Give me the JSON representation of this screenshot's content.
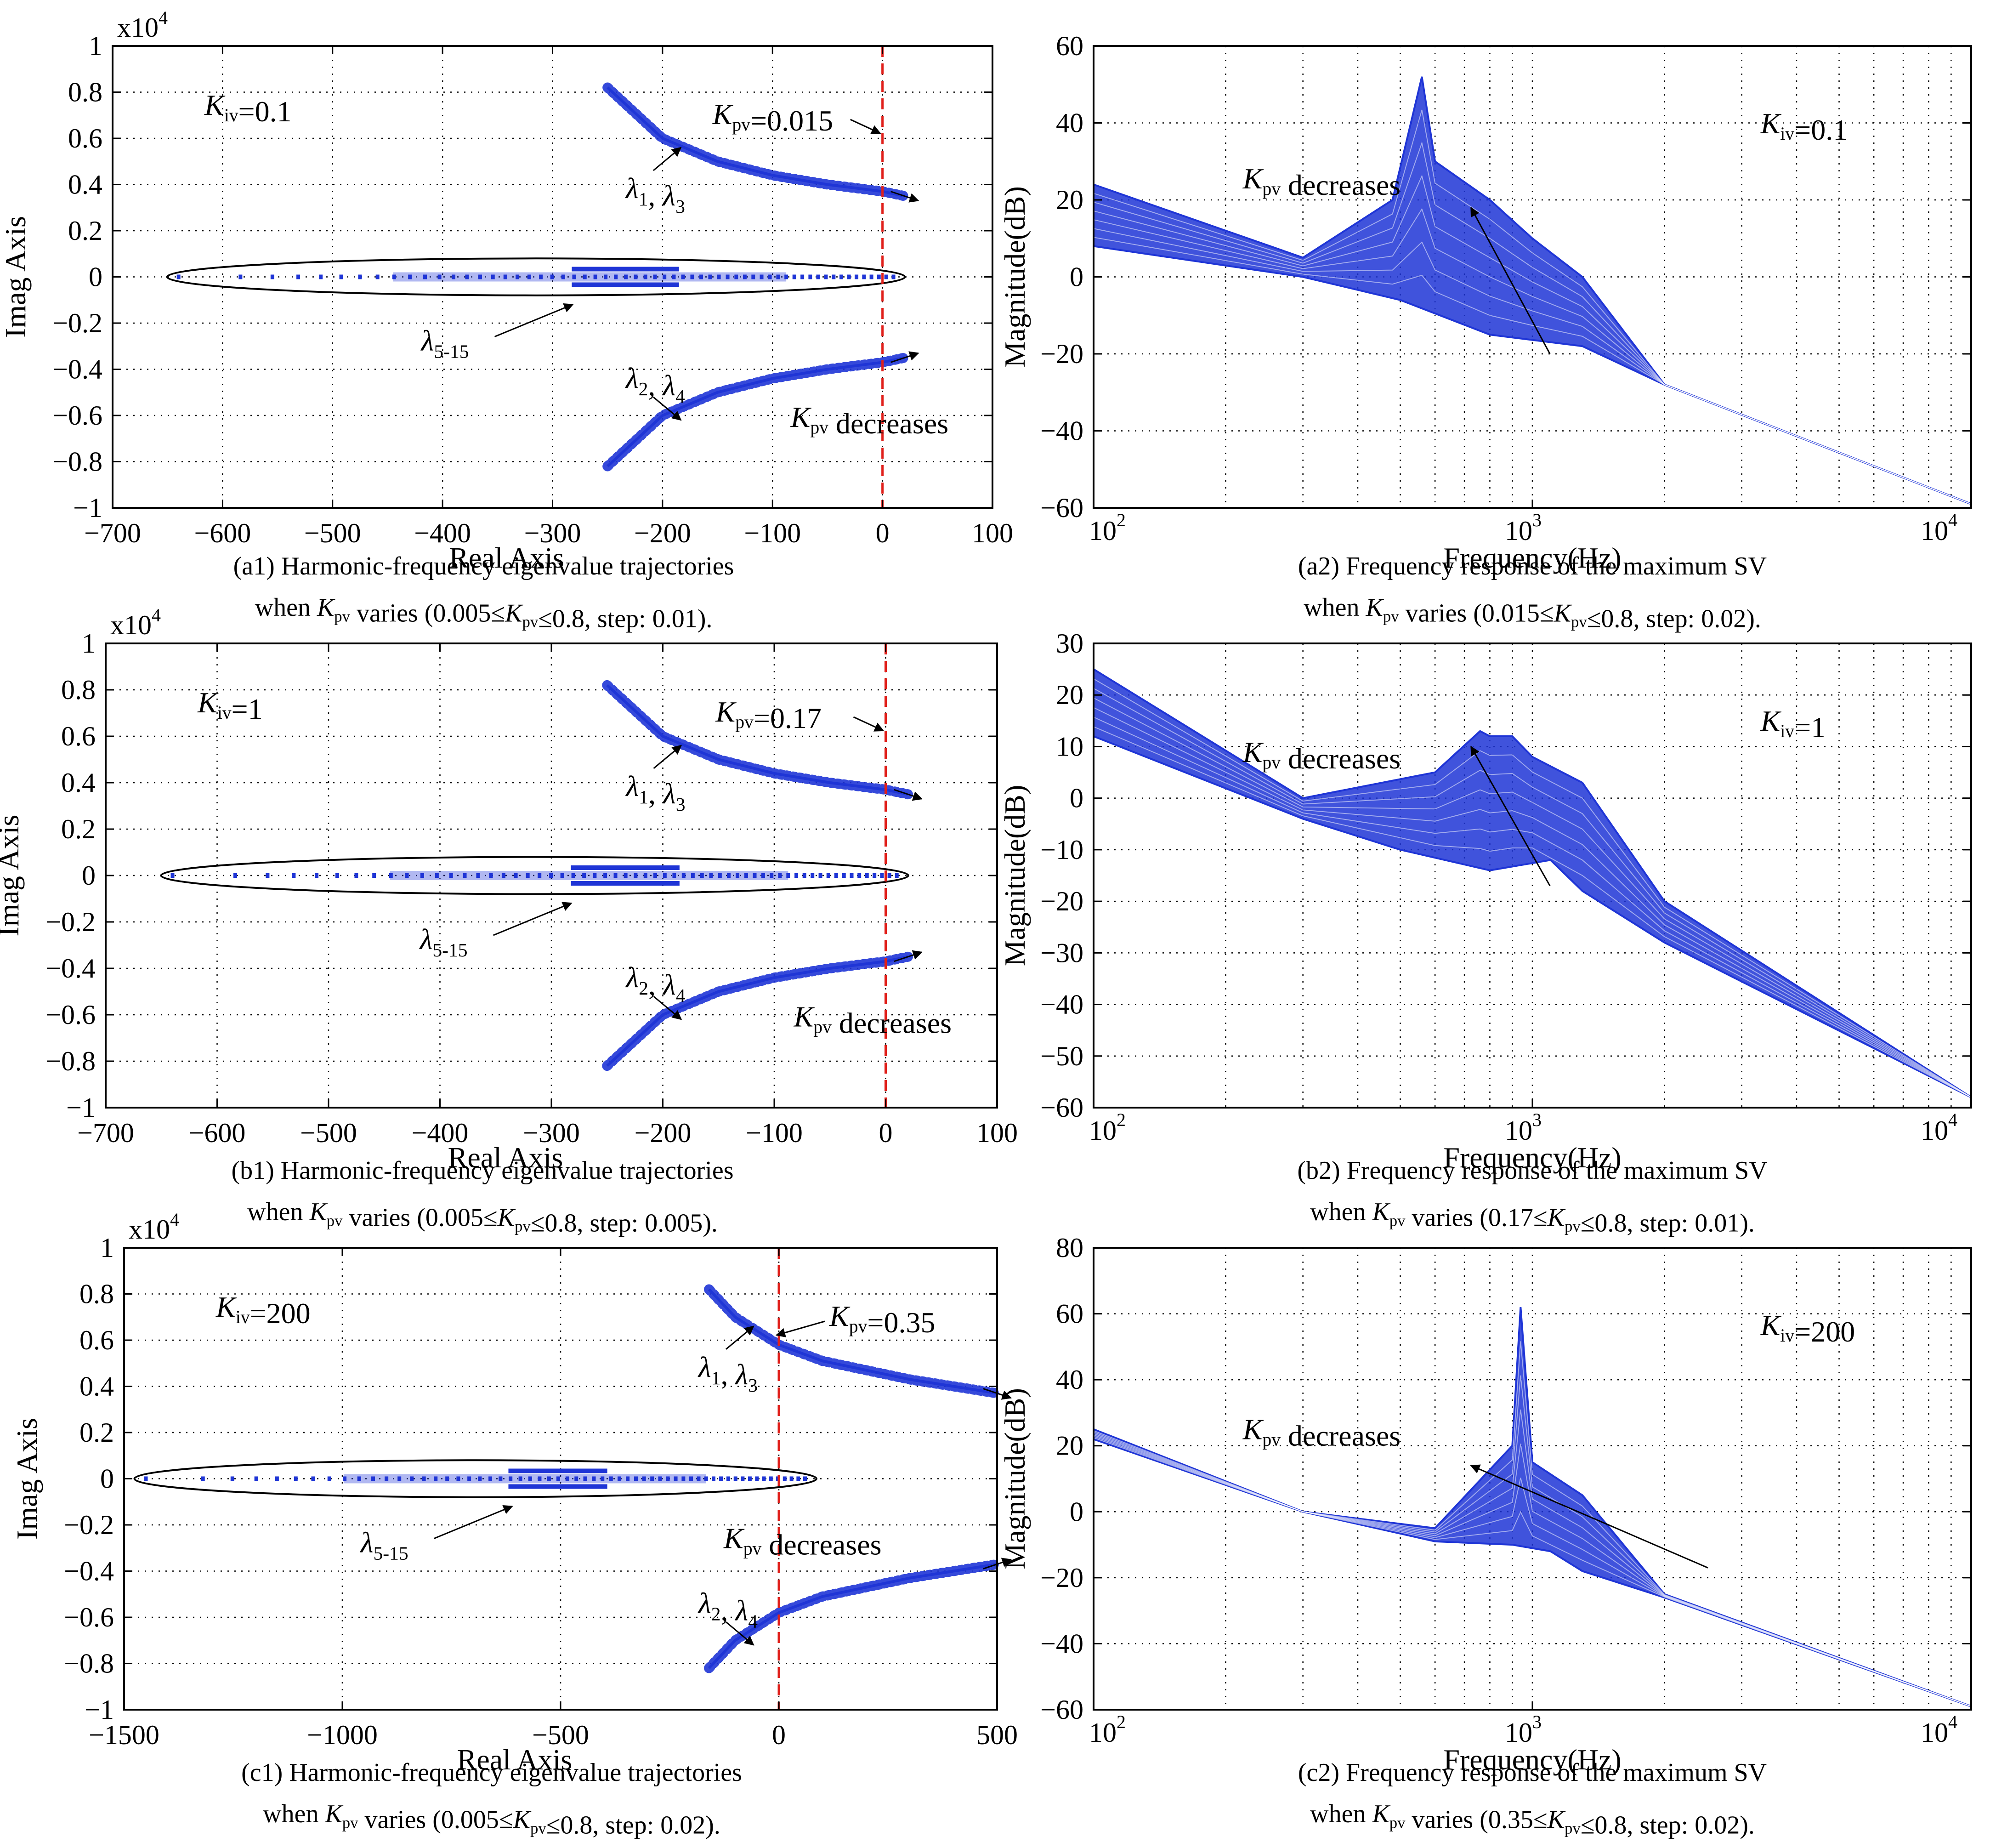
{
  "colors": {
    "series": "#1f35d6",
    "stability_line": "#e0201b",
    "ellipse": "#000000",
    "grid": "#000000"
  },
  "chart_data": [
    {
      "id": "a1",
      "type": "scatter",
      "xlabel": "Real Axis",
      "ylabel": "Imag Axis",
      "y_multiplier": "x10",
      "xlim": [
        -700,
        100
      ],
      "ylim": [
        -1,
        1
      ],
      "xticks": [
        "−700",
        "−600",
        "−500",
        "−400",
        "−300",
        "−200",
        "−100",
        "0",
        "100"
      ],
      "yticks": [
        "1",
        "0.8",
        "0.6",
        "0.4",
        "0.2",
        "0",
        "−0.2",
        "−0.4",
        "−0.6",
        "−0.8",
        "−1"
      ],
      "grid": true,
      "caption_line1": "(a1) Harmonic-frequency eigenvalue trajectories",
      "caption_line2": "when Kpv varies (0.005≤Kpv≤0.8, step: 0.01).",
      "annotations": {
        "kiv": "Kiv=0.1",
        "kpv_value": "Kpv=0.015",
        "lambda13": "λ1, λ3",
        "lambda24": "λ2, λ4",
        "lambda515": "λ5-15",
        "kpv_trend": "Kpv decreases"
      },
      "trajectory_upper": {
        "x": [
          -250,
          -200,
          -150,
          -100,
          -50,
          0,
          20
        ],
        "y": [
          0.82,
          0.6,
          0.5,
          0.44,
          0.4,
          0.37,
          0.35
        ]
      },
      "trajectory_lower": {
        "x": [
          -250,
          -200,
          -150,
          -100,
          -50,
          0,
          20
        ],
        "y": [
          -0.82,
          -0.6,
          -0.5,
          -0.44,
          -0.4,
          -0.37,
          -0.35
        ]
      },
      "real_axis_extent": [
        -640,
        10
      ],
      "stability_line_x": 0
    },
    {
      "id": "a2",
      "type": "line",
      "xlabel": "Frequency(Hz)",
      "ylabel": "Magnitude(dB)",
      "xscale": "log",
      "xlim": [
        100,
        10000
      ],
      "ylim": [
        -60,
        60
      ],
      "xticks": [
        "10",
        "10",
        "10"
      ],
      "xtick_exp": [
        "2",
        "3",
        "4"
      ],
      "yticks": [
        "60",
        "40",
        "20",
        "0",
        "−20",
        "−40",
        "−60"
      ],
      "grid": true,
      "caption_line1": "(a2) Frequency response of the maximum SV",
      "caption_line2": "when Kpv varies (0.015≤Kpv≤0.8, step: 0.02).",
      "annotations": {
        "kiv": "Kiv=0.1",
        "kpv_trend": "Kpv decreases"
      },
      "envelope_upper": {
        "x": [
          100,
          300,
          480,
          560,
          600,
          800,
          1000,
          1300,
          2000,
          10000
        ],
        "y": [
          24,
          5,
          20,
          52,
          30,
          20,
          10,
          0,
          -28,
          -59
        ]
      },
      "envelope_lower": {
        "x": [
          100,
          300,
          500,
          800,
          1300,
          2000,
          10000
        ],
        "y": [
          8,
          0,
          -6,
          -15,
          -18,
          -28,
          -59
        ]
      }
    },
    {
      "id": "b1",
      "type": "scatter",
      "xlabel": "Real Axis",
      "ylabel": "Imag Axis",
      "y_multiplier": "x10",
      "xlim": [
        -700,
        100
      ],
      "ylim": [
        -1,
        1
      ],
      "xticks": [
        "−700",
        "−600",
        "−500",
        "−400",
        "−300",
        "−200",
        "−100",
        "0",
        "100"
      ],
      "yticks": [
        "1",
        "0.8",
        "0.6",
        "0.4",
        "0.2",
        "0",
        "−0.2",
        "−0.4",
        "−0.6",
        "−0.8",
        "−1"
      ],
      "grid": true,
      "caption_line1": "(b1) Harmonic-frequency eigenvalue trajectories",
      "caption_line2": "when Kpv varies (0.005≤Kpv≤0.8, step: 0.005).",
      "annotations": {
        "kiv": "Kiv=1",
        "kpv_value": "Kpv=0.17",
        "lambda13": "λ1, λ3",
        "lambda24": "λ2, λ4",
        "lambda515": "λ5-15",
        "kpv_trend": "Kpv decreases"
      },
      "trajectory_upper": {
        "x": [
          -250,
          -200,
          -150,
          -100,
          -50,
          0,
          20
        ],
        "y": [
          0.82,
          0.6,
          0.5,
          0.44,
          0.4,
          0.37,
          0.35
        ]
      },
      "trajectory_lower": {
        "x": [
          -250,
          -200,
          -150,
          -100,
          -50,
          0,
          20
        ],
        "y": [
          -0.82,
          -0.6,
          -0.5,
          -0.44,
          -0.4,
          -0.37,
          -0.35
        ]
      },
      "real_axis_extent": [
        -640,
        10
      ],
      "stability_line_x": 0
    },
    {
      "id": "b2",
      "type": "line",
      "xlabel": "Frequency(Hz)",
      "ylabel": "Magnitude(dB)",
      "xscale": "log",
      "xlim": [
        100,
        10000
      ],
      "ylim": [
        -60,
        30
      ],
      "xticks": [
        "10",
        "10",
        "10"
      ],
      "xtick_exp": [
        "2",
        "3",
        "4"
      ],
      "yticks": [
        "30",
        "20",
        "10",
        "0",
        "−10",
        "−20",
        "−30",
        "−40",
        "−50",
        "−60"
      ],
      "grid": true,
      "caption_line1": "(b2) Frequency response of the maximum SV",
      "caption_line2": "when Kpv varies (0.17≤Kpv≤0.8, step: 0.01).",
      "annotations": {
        "kiv": "Kiv=1",
        "kpv_trend": "Kpv decreases"
      },
      "envelope_upper": {
        "x": [
          100,
          300,
          600,
          760,
          800,
          900,
          1000,
          1300,
          2000,
          10000
        ],
        "y": [
          25,
          0,
          5,
          13,
          12,
          12,
          8,
          3,
          -20,
          -58
        ]
      },
      "envelope_lower": {
        "x": [
          100,
          300,
          500,
          800,
          1100,
          1300,
          2000,
          10000
        ],
        "y": [
          12,
          -4,
          -10,
          -14,
          -12,
          -18,
          -28,
          -58
        ]
      }
    },
    {
      "id": "c1",
      "type": "scatter",
      "xlabel": "Real Axis",
      "ylabel": "Imag Axis",
      "y_multiplier": "x10",
      "xlim": [
        -1500,
        500
      ],
      "ylim": [
        -1,
        1
      ],
      "xticks": [
        "−1500",
        "−1000",
        "−500",
        "0",
        "500"
      ],
      "yticks": [
        "1",
        "0.8",
        "0.6",
        "0.4",
        "0.2",
        "0",
        "−0.2",
        "−0.4",
        "−0.6",
        "−0.8",
        "−1"
      ],
      "grid": true,
      "caption_line1": "(c1) Harmonic-frequency eigenvalue trajectories",
      "caption_line2": "when Kpv varies (0.005≤Kpv≤0.8, step: 0.02).",
      "annotations": {
        "kiv": "Kiv=200",
        "kpv_value": "Kpv=0.35",
        "lambda13": "λ1, λ3",
        "lambda24": "λ2, λ4",
        "lambda515": "λ5-15",
        "kpv_trend": "Kpv decreases"
      },
      "trajectory_upper": {
        "x": [
          -160,
          -100,
          0,
          100,
          200,
          300,
          400,
          500
        ],
        "y": [
          0.82,
          0.7,
          0.58,
          0.51,
          0.47,
          0.43,
          0.4,
          0.37
        ]
      },
      "trajectory_lower": {
        "x": [
          -160,
          -100,
          0,
          100,
          200,
          300,
          400,
          500
        ],
        "y": [
          -0.82,
          -0.7,
          -0.58,
          -0.51,
          -0.47,
          -0.43,
          -0.4,
          -0.37
        ]
      },
      "real_axis_extent": [
        -1450,
        60
      ],
      "stability_line_x": 0
    },
    {
      "id": "c2",
      "type": "line",
      "xlabel": "Frequency(Hz)",
      "ylabel": "Magnitude(dB)",
      "xscale": "log",
      "xlim": [
        100,
        10000
      ],
      "ylim": [
        -60,
        80
      ],
      "xticks": [
        "10",
        "10",
        "10"
      ],
      "xtick_exp": [
        "2",
        "3",
        "4"
      ],
      "yticks": [
        "80",
        "60",
        "40",
        "20",
        "0",
        "−20",
        "−40",
        "−60"
      ],
      "grid": true,
      "caption_line1": "(c2) Frequency response of the maximum SV",
      "caption_line2": "when Kpv varies (0.35≤Kpv≤0.8, step: 0.02).",
      "annotations": {
        "kiv": "Kiv=200",
        "kpv_trend": "Kpv decreases"
      },
      "envelope_upper": {
        "x": [
          100,
          300,
          600,
          900,
          940,
          1000,
          1300,
          2000,
          10000
        ],
        "y": [
          25,
          0,
          -5,
          20,
          62,
          15,
          5,
          -25,
          -59
        ]
      },
      "envelope_lower": {
        "x": [
          100,
          300,
          600,
          900,
          1100,
          1300,
          2000,
          10000
        ],
        "y": [
          22,
          0,
          -9,
          -10,
          -12,
          -18,
          -26,
          -59
        ]
      }
    }
  ]
}
